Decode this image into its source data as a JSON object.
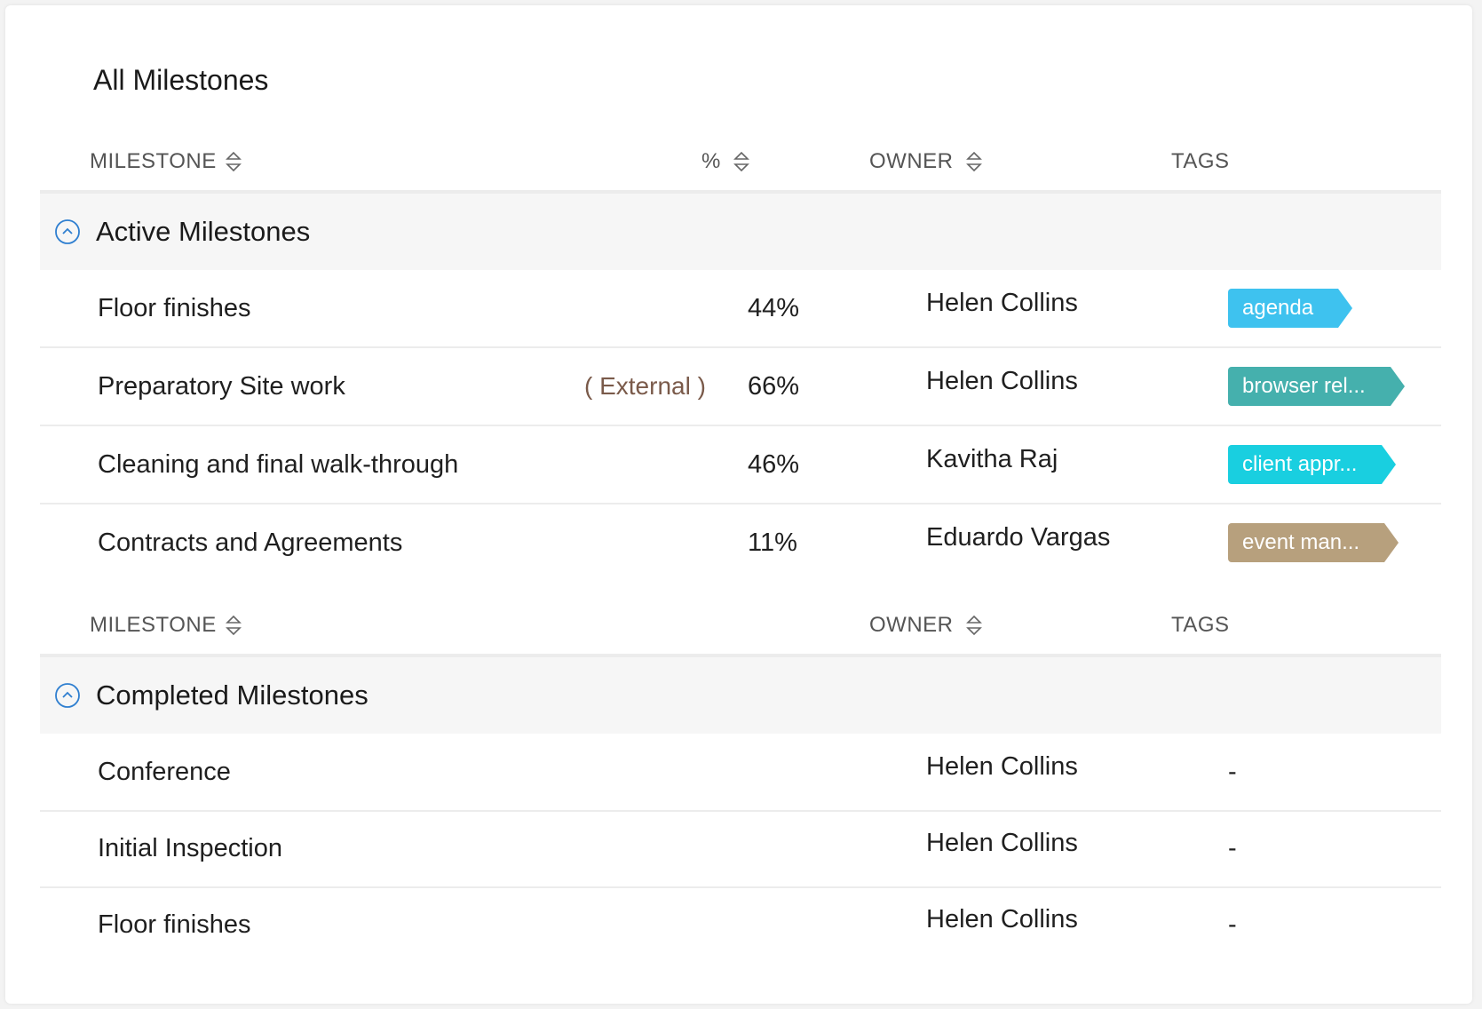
{
  "title": "All Milestones",
  "columns": {
    "milestone": "MILESTONE",
    "percent": "%",
    "owner": "OWNER",
    "tags": "TAGS"
  },
  "active": {
    "title": "Active Milestones",
    "rows": [
      {
        "name": "Floor finishes",
        "external": "",
        "percent": "44%",
        "owner": "Helen Collins",
        "tag": "agenda",
        "tag_color": "#3ec2ef"
      },
      {
        "name": "Preparatory Site work",
        "external": "( External )",
        "percent": "66%",
        "owner": "Helen Collins",
        "tag": "browser rel...",
        "tag_color": "#45b0ad"
      },
      {
        "name": "Cleaning and final walk-through",
        "external": "",
        "percent": "46%",
        "owner": "Kavitha Raj",
        "tag": "client appr...",
        "tag_color": "#19cfe0"
      },
      {
        "name": "Contracts and Agreements",
        "external": "",
        "percent": "11%",
        "owner": "Eduardo Vargas",
        "tag": "event man...",
        "tag_color": "#b7a07d"
      }
    ]
  },
  "completed": {
    "title": "Completed Milestones",
    "rows": [
      {
        "name": "Conference",
        "owner": "Helen Collins",
        "tag": "-"
      },
      {
        "name": "Initial Inspection",
        "owner": "Helen Collins",
        "tag": "-"
      },
      {
        "name": "Floor finishes",
        "owner": "Helen Collins",
        "tag": "-"
      }
    ]
  },
  "colors": {
    "accent": "#2f7fd0",
    "external_text": "#7a5a4a"
  }
}
